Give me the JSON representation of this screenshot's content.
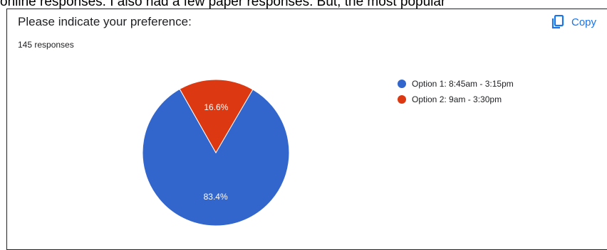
{
  "page": {
    "top_text": "online responses. I also had a few paper responses. But, the most popular"
  },
  "card": {
    "question": "Please indicate your preference:",
    "response_count": "145 responses",
    "copy_label": "Copy",
    "copy_icon": "copy-icon"
  },
  "chart_data": {
    "type": "pie",
    "title": "",
    "legend_position": "right",
    "slices": [
      {
        "label": "Option 1: 8:45am - 3:15pm",
        "value": 83.4,
        "display": "83.4%",
        "color": "#3366cc"
      },
      {
        "label": "Option 2: 9am - 3:30pm",
        "value": 16.6,
        "display": "16.6%",
        "color": "#dc3912"
      }
    ]
  }
}
